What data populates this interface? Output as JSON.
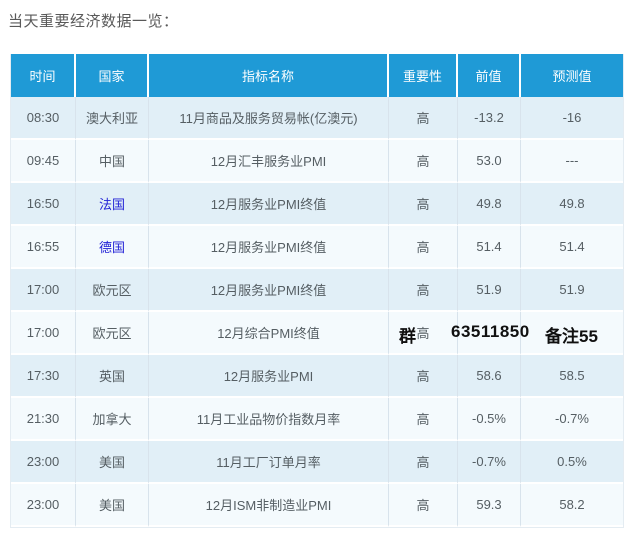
{
  "page": {
    "title": "当天重要经济数据一览："
  },
  "colors": {
    "header_bg": "#1f9ad6",
    "header_text": "#ffffff",
    "row_odd_bg": "#e1eff7",
    "row_even_bg": "#f4fafd",
    "body_text": "#555e63",
    "country_link": "#2222d6",
    "watermark_text": "#101010"
  },
  "table": {
    "headers": [
      "时间",
      "国家",
      "指标名称",
      "重要性",
      "前值",
      "预测值"
    ],
    "rows": [
      {
        "time": "08:30",
        "country": "澳大利亚",
        "link": false,
        "indicator": "11月商品及服务贸易帐(亿澳元)",
        "importance": "高",
        "previous": "-13.2",
        "forecast": "-16"
      },
      {
        "time": "09:45",
        "country": "中国",
        "link": false,
        "indicator": "12月汇丰服务业PMI",
        "importance": "高",
        "previous": "53.0",
        "forecast": "---"
      },
      {
        "time": "16:50",
        "country": "法国",
        "link": true,
        "indicator": "12月服务业PMI终值",
        "importance": "高",
        "previous": "49.8",
        "forecast": "49.8"
      },
      {
        "time": "16:55",
        "country": "德国",
        "link": true,
        "indicator": "12月服务业PMI终值",
        "importance": "高",
        "previous": "51.4",
        "forecast": "51.4"
      },
      {
        "time": "17:00",
        "country": "欧元区",
        "link": false,
        "indicator": "12月服务业PMI终值",
        "importance": "高",
        "previous": "51.9",
        "forecast": "51.9"
      },
      {
        "time": "17:00",
        "country": "欧元区",
        "link": false,
        "indicator": "12月综合PMI终值",
        "importance": "高",
        "previous": "",
        "forecast": ""
      },
      {
        "time": "17:30",
        "country": "英国",
        "link": false,
        "indicator": "12月服务业PMI",
        "importance": "高",
        "previous": "58.6",
        "forecast": "58.5"
      },
      {
        "time": "21:30",
        "country": "加拿大",
        "link": false,
        "indicator": "11月工业品物价指数月率",
        "importance": "高",
        "previous": "-0.5%",
        "forecast": "-0.7%"
      },
      {
        "time": "23:00",
        "country": "美国",
        "link": false,
        "indicator": "11月工厂订单月率",
        "importance": "高",
        "previous": "-0.7%",
        "forecast": "0.5%"
      },
      {
        "time": "23:00",
        "country": "美国",
        "link": false,
        "indicator": "12月ISM非制造业PMI",
        "importance": "高",
        "previous": "59.3",
        "forecast": "58.2"
      }
    ],
    "watermark": {
      "group_label": "群",
      "group_number": "63511850",
      "note": "备注55"
    }
  }
}
